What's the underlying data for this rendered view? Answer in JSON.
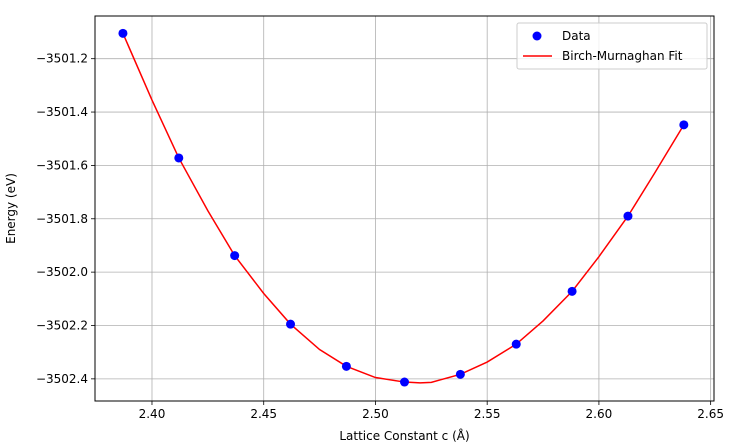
{
  "chart_data": {
    "type": "scatter",
    "title": "",
    "xlabel": "Lattice Constant c (Å)",
    "ylabel": "Energy (eV)",
    "xlim": [
      2.3745,
      2.6515
    ],
    "ylim": [
      -3502.483,
      -3501.04
    ],
    "grid": true,
    "legend_position": "top-right",
    "x_ticks": [
      2.4,
      2.45,
      2.5,
      2.55,
      2.6,
      2.65
    ],
    "x_tick_labels": [
      "2.40",
      "2.45",
      "2.50",
      "2.55",
      "2.60",
      "2.65"
    ],
    "y_ticks": [
      -3501.2,
      -3501.4,
      -3501.6,
      -3501.8,
      -3502.0,
      -3502.2,
      -3502.4
    ],
    "y_tick_labels": [
      "−3501.2",
      "−3501.4",
      "−3501.6",
      "−3501.8",
      "−3502.0",
      "−3502.2",
      "−3502.4"
    ],
    "series": [
      {
        "name": "Data",
        "kind": "scatter",
        "color": "#0000ff",
        "x": [
          2.387,
          2.412,
          2.437,
          2.462,
          2.487,
          2.513,
          2.538,
          2.563,
          2.588,
          2.613,
          2.638
        ],
        "y": [
          -3501.105,
          -3501.572,
          -3501.938,
          -3502.195,
          -3502.353,
          -3502.412,
          -3502.383,
          -3502.27,
          -3502.072,
          -3501.79,
          -3501.448
        ]
      },
      {
        "name": "Birch-Murnaghan Fit",
        "kind": "line",
        "color": "#ff0000",
        "x": [
          2.387,
          2.4,
          2.412,
          2.425,
          2.437,
          2.45,
          2.462,
          2.475,
          2.487,
          2.5,
          2.513,
          2.52,
          2.525,
          2.538,
          2.55,
          2.563,
          2.575,
          2.588,
          2.6,
          2.613,
          2.625,
          2.638
        ],
        "y": [
          -3501.105,
          -3501.355,
          -3501.572,
          -3501.77,
          -3501.938,
          -3502.08,
          -3502.195,
          -3502.29,
          -3502.353,
          -3502.395,
          -3502.412,
          -3502.415,
          -3502.413,
          -3502.383,
          -3502.337,
          -3502.27,
          -3502.183,
          -3502.072,
          -3501.942,
          -3501.79,
          -3501.628,
          -3501.448
        ]
      }
    ]
  }
}
